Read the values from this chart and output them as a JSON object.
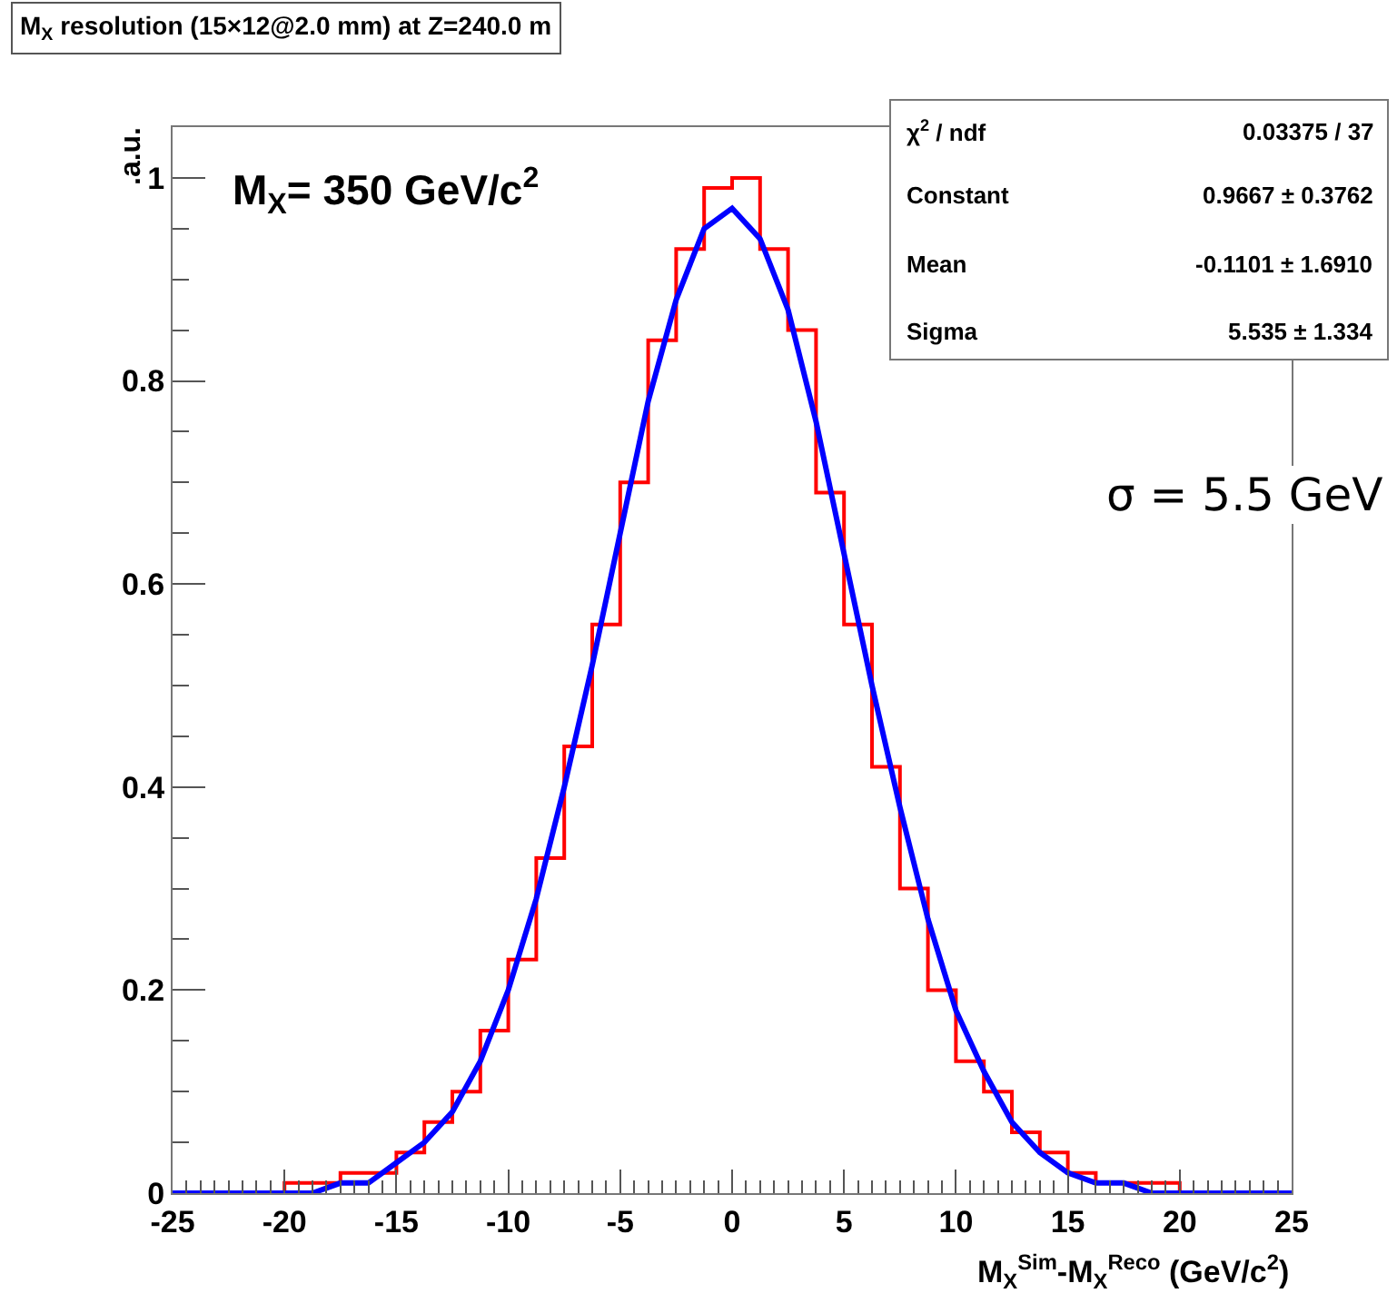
{
  "chart_data": {
    "type": "histogram",
    "title": "M$_{X}$ resolution (15×12@2.0 mm) at Z=240.0 m",
    "xlabel": "M$_{X}$$^{Sim}$-M$_{X}$$^{Reco}$ (GeV/c$^{2}$)",
    "ylabel": ".a.u.",
    "xlim": [
      -25,
      25
    ],
    "xticks": [
      -25,
      -20,
      -15,
      -10,
      -5,
      0,
      5,
      10,
      15,
      20,
      25
    ],
    "ylim": [
      0,
      1.05
    ],
    "yticks": [
      0,
      0.2,
      0.4,
      0.6,
      0.8,
      1
    ],
    "series": [
      {
        "color": "#ff0000",
        "bins": [
          -25,
          -23.75,
          -22.5,
          -21.25,
          -20,
          -18.75,
          -17.5,
          -16.25,
          -15,
          -13.75,
          -12.5,
          -11.25,
          -10,
          -8.75,
          -7.5,
          -6.25,
          -5,
          -3.75,
          -2.5,
          -1.25,
          0,
          1.25,
          2.5,
          3.75,
          5,
          6.25,
          7.5,
          8.75,
          10,
          11.25,
          12.5,
          13.75,
          15,
          16.25,
          17.5,
          18.75,
          20,
          21.25,
          22.5,
          23.75,
          25
        ],
        "values": [
          0,
          0,
          0,
          0.0,
          0.01,
          0.01,
          0.02,
          0.02,
          0.04,
          0.07,
          0.1,
          0.16,
          0.23,
          0.33,
          0.44,
          0.56,
          0.7,
          0.84,
          0.93,
          0.99,
          1.0,
          0.93,
          0.85,
          0.69,
          0.56,
          0.42,
          0.3,
          0.2,
          0.13,
          0.1,
          0.06,
          0.04,
          0.02,
          0.01,
          0.01,
          0.01,
          0.0,
          0.0,
          0,
          0
        ]
      },
      {
        "type": "line",
        "color": "#0000ff",
        "x": [
          -25,
          -23.75,
          -22.5,
          -21.25,
          -20,
          -18.75,
          -17.5,
          -16.25,
          -15,
          -13.75,
          -12.5,
          -11.25,
          -10,
          -8.75,
          -7.5,
          -6.25,
          -5,
          -3.75,
          -2.5,
          -1.25,
          0,
          1.25,
          2.5,
          3.75,
          5,
          6.25,
          7.5,
          8.75,
          10,
          11.25,
          12.5,
          13.75,
          15,
          16.25,
          17.5,
          18.75,
          20,
          21.25,
          22.5,
          23.75,
          25
        ],
        "values": [
          0,
          0,
          0,
          0,
          0.0,
          0.0,
          0.01,
          0.01,
          0.03,
          0.05,
          0.08,
          0.13,
          0.2,
          0.29,
          0.4,
          0.52,
          0.65,
          0.78,
          0.88,
          0.95,
          0.97,
          0.94,
          0.87,
          0.76,
          0.63,
          0.5,
          0.38,
          0.27,
          0.18,
          0.12,
          0.07,
          0.04,
          0.02,
          0.01,
          0.01,
          0.0,
          0.0,
          0,
          0,
          0,
          0
        ]
      }
    ],
    "annotations": [
      "M$_{X}$= 350 GeV/c$^{2}$",
      "χ$^{2}$ / ndf",
      "0.03375 / 37",
      "Constant",
      "0.9667 ± 0.3762",
      "Mean",
      "-0.1101 ± 1.6910",
      "Sigma",
      "5.535 ± 1.334",
      "σ = 5.5 GeV"
    ]
  }
}
